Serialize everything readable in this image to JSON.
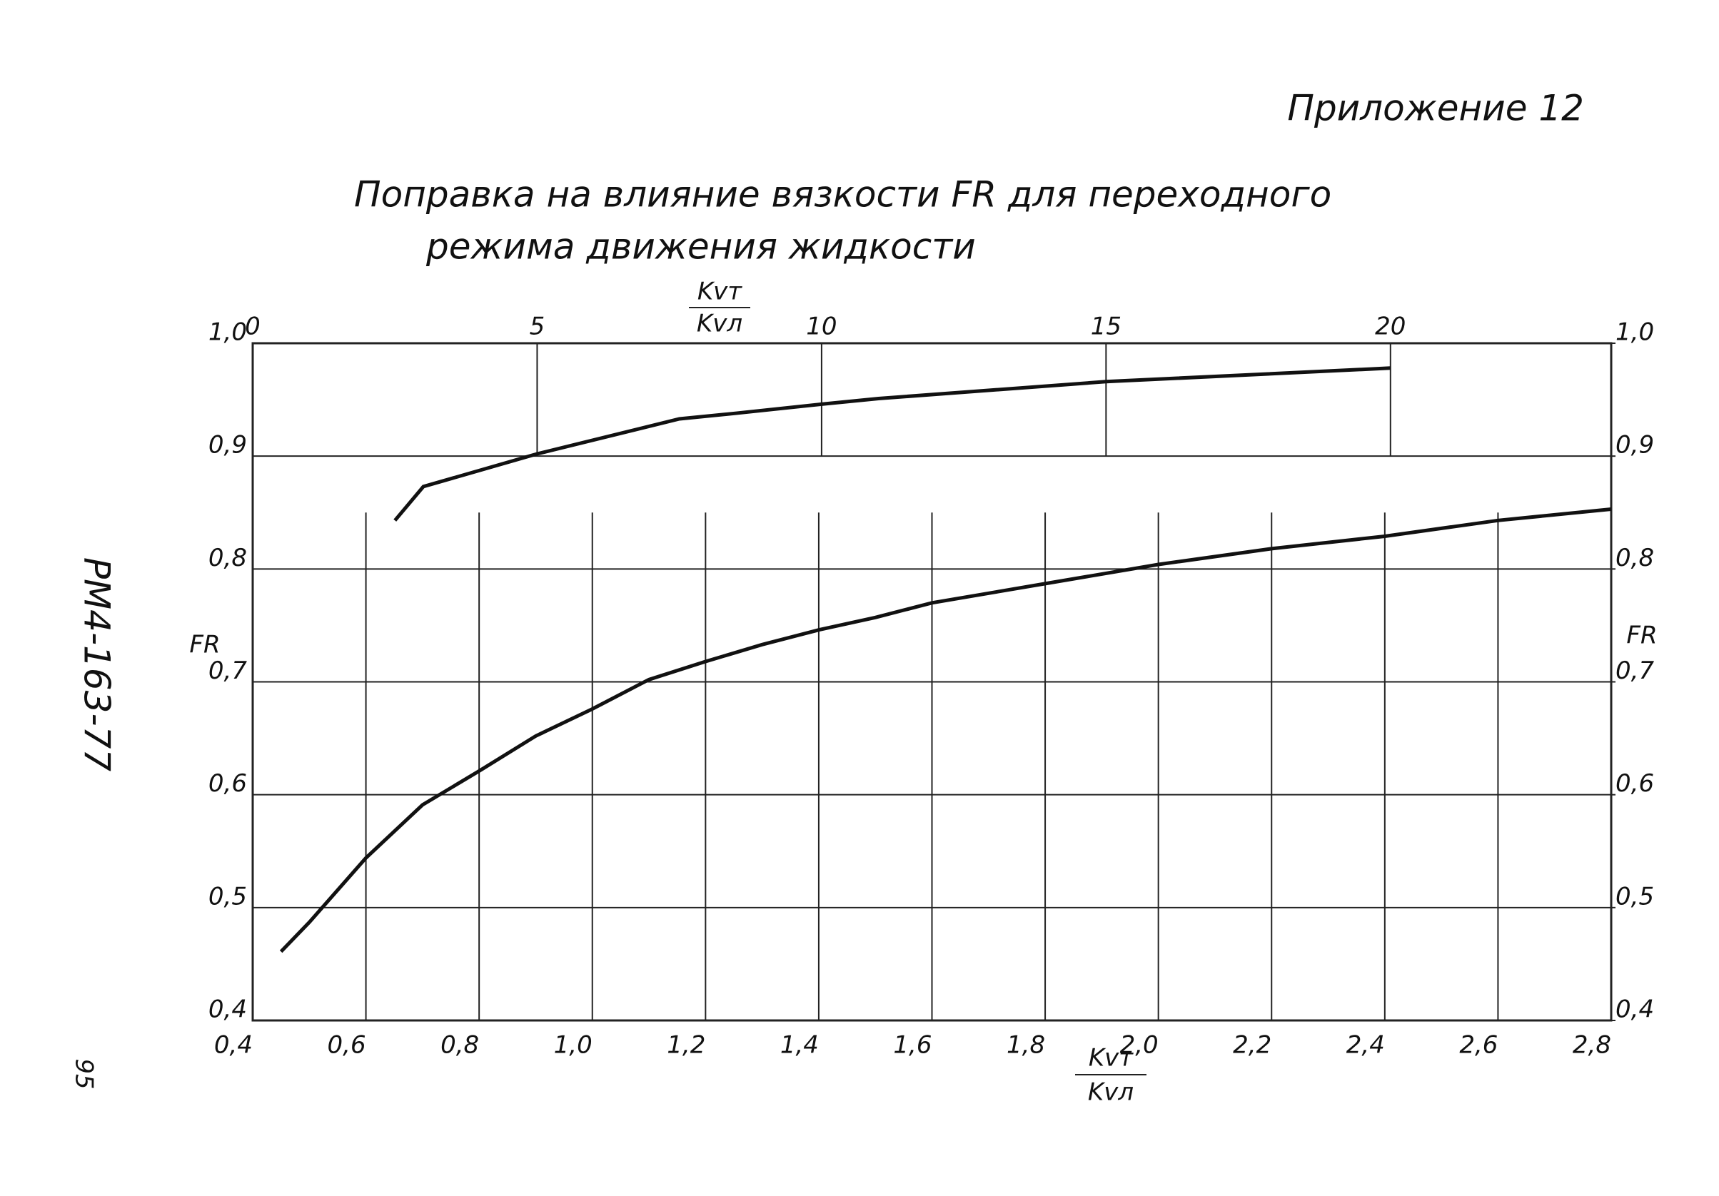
{
  "chart_data": {
    "type": "line",
    "annotation": "Приложение 12",
    "title_lines": [
      "Поправка на влияние вязкости FR для переходного",
      "режима движения жидкости"
    ],
    "side_label": "РМ4-163-77",
    "page_number": "95",
    "x_label": {
      "numerator": "Kvт",
      "denominator": "Kvл"
    },
    "x2_label": {
      "numerator": "Kvт",
      "denominator": "Kvл"
    },
    "y_label": "FR",
    "y2_label": "FR",
    "xlim": [
      0.4,
      2.8
    ],
    "xticks": [
      {
        "value": 0.4,
        "label": "0,4"
      },
      {
        "value": 0.6,
        "label": "0,6"
      },
      {
        "value": 0.8,
        "label": "0,8"
      },
      {
        "value": 1.0,
        "label": "1,0"
      },
      {
        "value": 1.2,
        "label": "1,2"
      },
      {
        "value": 1.4,
        "label": "1,4"
      },
      {
        "value": 1.6,
        "label": "1,6"
      },
      {
        "value": 1.8,
        "label": "1,8"
      },
      {
        "value": 2.0,
        "label": "2,0"
      },
      {
        "value": 2.2,
        "label": "2,2"
      },
      {
        "value": 2.4,
        "label": "2,4"
      },
      {
        "value": 2.6,
        "label": "2,6"
      },
      {
        "value": 2.8,
        "label": "2,8"
      }
    ],
    "x2lim": [
      0,
      23.88
    ],
    "x2ticks": [
      0,
      5,
      10,
      15,
      20
    ],
    "ylim": [
      0.4,
      1.0
    ],
    "yticks": [
      {
        "value": 0.4,
        "label": "0,4"
      },
      {
        "value": 0.5,
        "label": "0,5"
      },
      {
        "value": 0.6,
        "label": "0,6"
      },
      {
        "value": 0.7,
        "label": "0,7"
      },
      {
        "value": 0.8,
        "label": "0,8"
      },
      {
        "value": 0.9,
        "label": "0,9"
      },
      {
        "value": 1.0,
        "label": "1,0"
      }
    ],
    "y2ticks": [
      {
        "value": 0.4,
        "label": "0,4"
      },
      {
        "value": 0.5,
        "label": "0,5"
      },
      {
        "value": 0.6,
        "label": "0,6"
      },
      {
        "value": 0.7,
        "label": "0,7"
      },
      {
        "value": 0.8,
        "label": "0,8"
      },
      {
        "value": 0.9,
        "label": "0,9"
      },
      {
        "value": 1.0,
        "label": "1,0"
      }
    ],
    "grid": true,
    "series": [
      {
        "color": "#111111",
        "axis": "x2",
        "x": [
          2.5,
          3,
          5,
          7.5,
          8.5,
          10,
          11,
          15,
          20
        ],
        "values": [
          0.843,
          0.873,
          0.902,
          0.933,
          0.938,
          0.946,
          0.951,
          0.966,
          0.978
        ]
      },
      {
        "color": "#111111",
        "x": [
          0.45,
          0.5,
          0.6,
          0.7,
          0.8,
          0.9,
          1.0,
          1.1,
          1.2,
          1.3,
          1.4,
          1.5,
          1.6,
          1.8,
          2.0,
          2.2,
          2.4,
          2.6,
          2.8
        ],
        "values": [
          0.461,
          0.487,
          0.544,
          0.591,
          0.621,
          0.652,
          0.676,
          0.702,
          0.718,
          0.733,
          0.746,
          0.757,
          0.77,
          0.787,
          0.804,
          0.818,
          0.829,
          0.843,
          0.853
        ]
      }
    ]
  }
}
